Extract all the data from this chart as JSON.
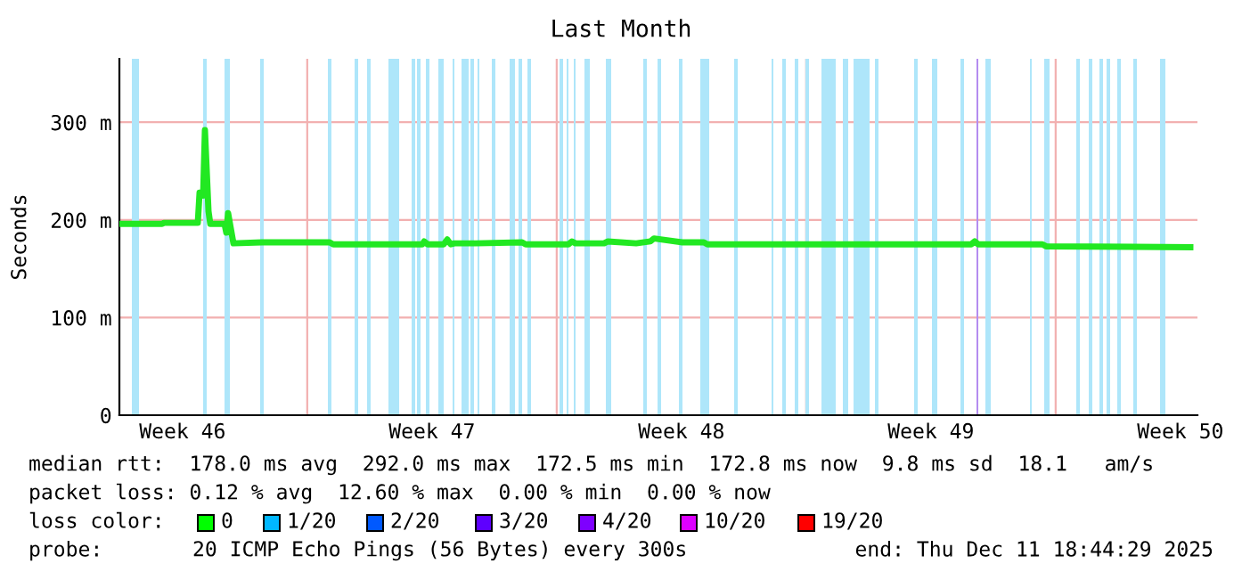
{
  "chart_data": {
    "type": "line",
    "title": "Last Month",
    "ylabel": "Seconds",
    "x": [
      "2025-11-11T17:30",
      "2025-11-12T22:18",
      "2025-11-12T23:30",
      "2025-11-13T22:18",
      "2025-11-13T23:30",
      "2025-11-14T01:54",
      "2025-11-14T03:06",
      "2025-11-14T05:30",
      "2025-11-14T06:42",
      "2025-11-14T16:18",
      "2025-11-14T17:30",
      "2025-11-14T18:42",
      "2025-11-14T22:18",
      "2025-11-15T17:30",
      "2025-11-17T15:06",
      "2025-11-17T17:30",
      "2025-11-20T05:30",
      "2025-11-20T06:42",
      "2025-11-20T09:06",
      "2025-11-20T19:54",
      "2025-11-20T22:18",
      "2025-11-21T00:42",
      "2025-11-21T03:06",
      "2025-11-21T17:30",
      "2025-11-23T00:42",
      "2025-11-23T03:06",
      "2025-11-24T07:54",
      "2025-11-24T10:18",
      "2025-11-24T12:42",
      "2025-11-25T07:54",
      "2025-11-25T10:18",
      "2025-11-26T05:30",
      "2025-11-26T15:06",
      "2025-11-26T17:30",
      "2025-11-27T12:42",
      "2025-11-28T03:06",
      "2025-11-28T05:30",
      "2025-12-05T15:06",
      "2025-12-05T17:30",
      "2025-12-05T19:54",
      "2025-12-07T15:06",
      "2025-12-07T17:30",
      "2025-12-11T18:42"
    ],
    "series": [
      {
        "color": "#22e822",
        "values": [
          196,
          196,
          197,
          197,
          228,
          225,
          292,
          209,
          196,
          196,
          187,
          207,
          176,
          177,
          177,
          175,
          175,
          178,
          175,
          175,
          180,
          175,
          176,
          176,
          177,
          175,
          175,
          178,
          176,
          176,
          178,
          176,
          178,
          181,
          177,
          177,
          175,
          175,
          178,
          175,
          175,
          173,
          172
        ]
      }
    ],
    "xlim": [
      "2025-11-11T17:30",
      "2025-12-11T23:30"
    ],
    "xticks": [
      {
        "value": "2025-11-13T12:00",
        "label": "Week 46"
      },
      {
        "value": "2025-11-20T12:00",
        "label": "Week 47"
      },
      {
        "value": "2025-11-27T12:00",
        "label": "Week 48"
      },
      {
        "value": "2025-12-04T12:00",
        "label": "Week 49"
      },
      {
        "value": "2025-12-11T12:00",
        "label": "Week 50"
      }
    ],
    "ylim": [
      0,
      365
    ],
    "yticks": [
      {
        "value": 0,
        "label": "0"
      },
      {
        "value": 100,
        "label": "100 m"
      },
      {
        "value": 200,
        "label": "200 m"
      },
      {
        "value": 300,
        "label": "300 m"
      }
    ],
    "grid": "y",
    "ref_lines": [
      {
        "axis": "x",
        "value": "2025-11-17",
        "color": "#f2b0b0"
      },
      {
        "axis": "x",
        "value": "2025-11-24",
        "color": "#f2b0b0"
      },
      {
        "axis": "x",
        "value": "2025-12-01",
        "color": "#f2b0b0"
      },
      {
        "axis": "x",
        "value": "2025-12-08",
        "color": "#f2b0b0"
      }
    ],
    "bands": [
      {
        "axis": "x",
        "from": "2025-11-12T01:54",
        "to": "2025-11-12T06:42",
        "color": "#aee6fa"
      },
      {
        "axis": "x",
        "from": "2025-11-14T01:54",
        "to": "2025-11-14T04:18",
        "color": "#aee6fa"
      },
      {
        "axis": "x",
        "from": "2025-11-14T16:18",
        "to": "2025-11-14T19:54",
        "color": "#aee6fa"
      },
      {
        "axis": "x",
        "from": "2025-11-15T16:18",
        "to": "2025-11-15T18:42",
        "color": "#aee6fa"
      },
      {
        "axis": "x",
        "from": "2025-11-17T13:54",
        "to": "2025-11-17T16:18",
        "color": "#aee6fa"
      },
      {
        "axis": "x",
        "from": "2025-11-18T07:54",
        "to": "2025-11-18T10:18",
        "color": "#aee6fa"
      },
      {
        "axis": "x",
        "from": "2025-11-18T16:18",
        "to": "2025-11-18T18:42",
        "color": "#aee6fa"
      },
      {
        "axis": "x",
        "from": "2025-11-19T06:42",
        "to": "2025-11-19T13:54",
        "color": "#aee6fa"
      },
      {
        "axis": "x",
        "from": "2025-11-19T22:18",
        "to": "2025-11-20T00:42",
        "color": "#aee6fa"
      },
      {
        "axis": "x",
        "from": "2025-11-20T01:54",
        "to": "2025-11-20T04:18",
        "color": "#aee6fa"
      },
      {
        "axis": "x",
        "from": "2025-11-20T07:54",
        "to": "2025-11-20T10:18",
        "color": "#aee6fa"
      },
      {
        "axis": "x",
        "from": "2025-11-20T16:18",
        "to": "2025-11-20T19:54",
        "color": "#aee6fa"
      },
      {
        "axis": "x",
        "from": "2025-11-21T01:54",
        "to": "2025-11-21T03:06",
        "color": "#aee6fa"
      },
      {
        "axis": "x",
        "from": "2025-11-21T07:54",
        "to": "2025-11-21T12:42",
        "color": "#aee6fa"
      },
      {
        "axis": "x",
        "from": "2025-11-21T13:54",
        "to": "2025-11-21T16:18",
        "color": "#aee6fa"
      },
      {
        "axis": "x",
        "from": "2025-11-21T18:42",
        "to": "2025-11-21T19:54",
        "color": "#aee6fa"
      },
      {
        "axis": "x",
        "from": "2025-11-22T04:18",
        "to": "2025-11-22T06:42",
        "color": "#aee6fa"
      },
      {
        "axis": "x",
        "from": "2025-11-22T16:18",
        "to": "2025-11-22T19:54",
        "color": "#aee6fa"
      },
      {
        "axis": "x",
        "from": "2025-11-22T22:18",
        "to": "2025-11-23T00:42",
        "color": "#aee6fa"
      },
      {
        "axis": "x",
        "from": "2025-11-23T04:18",
        "to": "2025-11-23T06:42",
        "color": "#aee6fa"
      },
      {
        "axis": "x",
        "from": "2025-11-24T01:54",
        "to": "2025-11-24T04:18",
        "color": "#aee6fa"
      },
      {
        "axis": "x",
        "from": "2025-11-24T06:42",
        "to": "2025-11-24T07:54",
        "color": "#aee6fa"
      },
      {
        "axis": "x",
        "from": "2025-11-24T11:30",
        "to": "2025-11-24T12:42",
        "color": "#aee6fa"
      },
      {
        "axis": "x",
        "from": "2025-11-24T18:42",
        "to": "2025-11-24T22:18",
        "color": "#aee6fa"
      },
      {
        "axis": "x",
        "from": "2025-11-25T09:06",
        "to": "2025-11-25T12:42",
        "color": "#aee6fa"
      },
      {
        "axis": "x",
        "from": "2025-11-26T10:18",
        "to": "2025-11-26T12:42",
        "color": "#aee6fa"
      },
      {
        "axis": "x",
        "from": "2025-11-26T19:54",
        "to": "2025-11-26T22:18",
        "color": "#aee6fa"
      },
      {
        "axis": "x",
        "from": "2025-11-27T10:18",
        "to": "2025-11-27T12:42",
        "color": "#aee6fa"
      },
      {
        "axis": "x",
        "from": "2025-11-28T00:42",
        "to": "2025-11-28T06:42",
        "color": "#aee6fa"
      },
      {
        "axis": "x",
        "from": "2025-11-28T23:30",
        "to": "2025-11-29T01:54",
        "color": "#aee6fa"
      },
      {
        "axis": "x",
        "from": "2025-11-30T00:42",
        "to": "2025-11-30T01:54",
        "color": "#aee6fa"
      },
      {
        "axis": "x",
        "from": "2025-11-30T07:54",
        "to": "2025-11-30T10:18",
        "color": "#aee6fa"
      },
      {
        "axis": "x",
        "from": "2025-11-30T16:18",
        "to": "2025-11-30T18:42",
        "color": "#aee6fa"
      },
      {
        "axis": "x",
        "from": "2025-11-30T23:30",
        "to": "2025-12-01T01:54",
        "color": "#aee6fa"
      },
      {
        "axis": "x",
        "from": "2025-12-01T10:18",
        "to": "2025-12-01T19:54",
        "color": "#aee6fa"
      },
      {
        "axis": "x",
        "from": "2025-12-02T00:42",
        "to": "2025-12-02T04:18",
        "color": "#aee6fa"
      },
      {
        "axis": "x",
        "from": "2025-12-02T07:54",
        "to": "2025-12-02T18:42",
        "color": "#aee6fa"
      },
      {
        "axis": "x",
        "from": "2025-12-02T22:18",
        "to": "2025-12-03T00:42",
        "color": "#aee6fa"
      },
      {
        "axis": "x",
        "from": "2025-12-04T00:42",
        "to": "2025-12-04T03:06",
        "color": "#aee6fa"
      },
      {
        "axis": "x",
        "from": "2025-12-04T12:42",
        "to": "2025-12-04T16:18",
        "color": "#aee6fa"
      },
      {
        "axis": "x",
        "from": "2025-12-05T07:54",
        "to": "2025-12-05T10:18",
        "color": "#aee6fa"
      },
      {
        "axis": "x",
        "from": "2025-12-05T18:42",
        "to": "2025-12-05T19:54",
        "color": "#b48cf0"
      },
      {
        "axis": "x",
        "from": "2025-12-06T00:42",
        "to": "2025-12-06T04:18",
        "color": "#aee6fa"
      },
      {
        "axis": "x",
        "from": "2025-12-07T06:42",
        "to": "2025-12-07T07:54",
        "color": "#aee6fa"
      },
      {
        "axis": "x",
        "from": "2025-12-07T16:18",
        "to": "2025-12-07T19:54",
        "color": "#aee6fa"
      },
      {
        "axis": "x",
        "from": "2025-12-08T13:54",
        "to": "2025-12-08T16:18",
        "color": "#aee6fa"
      },
      {
        "axis": "x",
        "from": "2025-12-08T22:18",
        "to": "2025-12-09T00:42",
        "color": "#aee6fa"
      },
      {
        "axis": "x",
        "from": "2025-12-09T05:30",
        "to": "2025-12-09T07:54",
        "color": "#aee6fa"
      },
      {
        "axis": "x",
        "from": "2025-12-09T10:18",
        "to": "2025-12-09T12:42",
        "color": "#aee6fa"
      },
      {
        "axis": "x",
        "from": "2025-12-09T17:30",
        "to": "2025-12-09T19:54",
        "color": "#aee6fa"
      },
      {
        "axis": "x",
        "from": "2025-12-10T04:18",
        "to": "2025-12-10T06:42",
        "color": "#aee6fa"
      },
      {
        "axis": "x",
        "from": "2025-12-10T22:18",
        "to": "2025-12-11T01:54",
        "color": "#aee6fa"
      }
    ],
    "annotations": [
      "median rtt:  178.0 ms avg  292.0 ms max  172.5 ms min  172.8 ms now  9.8 ms sd  18.1   am/s",
      "packet loss: 0.12 % avg  12.60 % max  0.00 % min  0.00 % now",
      "loss color:",
      "0",
      "1/20",
      "2/20",
      "3/20",
      "4/20",
      "10/20",
      "19/20",
      "probe:",
      "20 ICMP Echo Pings (56 Bytes) every 300s",
      "end: Thu Dec 11 18:44:29 2025"
    ]
  }
}
